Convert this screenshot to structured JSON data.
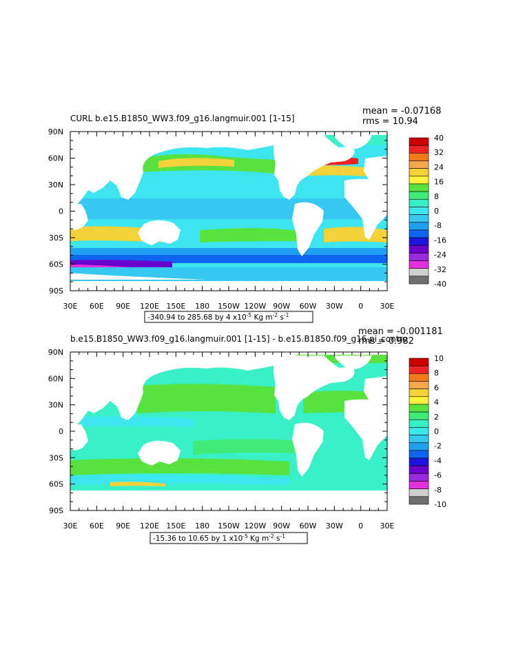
{
  "chart_data": [
    {
      "type": "heatmap",
      "title": "CURL b.e15.B1850_WW3.f09_g16.langmuir.001 [1-15]",
      "mean_label": "mean = -0.07168",
      "rms_label": "rms = 10.94",
      "range_label": "-340.94 to 285.68 by 4 x10",
      "range_exp": "-5",
      "range_units": " Kg m",
      "range_units_exp": "-2",
      "range_units2": " s",
      "range_units2_exp": "-1",
      "x_ticks": [
        "30E",
        "60E",
        "90E",
        "120E",
        "150E",
        "180",
        "150W",
        "120W",
        "90W",
        "60W",
        "30W",
        "0",
        "30E"
      ],
      "y_ticks": [
        "90N",
        "60N",
        "30N",
        "0",
        "30S",
        "60S",
        "90S"
      ],
      "colorbar_levels": [
        "40",
        "32",
        "24",
        "16",
        "8",
        "0",
        "-8",
        "-16",
        "-24",
        "-32",
        "-40"
      ],
      "colors": [
        "#cc0000",
        "#ee2222",
        "#f47a1a",
        "#f5a84a",
        "#f5d23a",
        "#fff23a",
        "#57e23d",
        "#40eb7a",
        "#3af0c6",
        "#3de6ee",
        "#37c8f2",
        "#20a0f0",
        "#1065ee",
        "#1d16e0",
        "#6a00cc",
        "#9a2ae0",
        "#e630e0",
        "#d0d0d0",
        "#707070"
      ],
      "mean": -0.07168,
      "rms": 10.94
    },
    {
      "type": "heatmap",
      "title": "b.e15.B1850_WW3.f09_g16.langmuir.001 [1-15] - b.e15.B1850.f09_g16.pi_contro",
      "mean_label": "mean = -0.001181",
      "rms_label": "rms = 0.982",
      "range_label": "-15.36 to 10.65 by 1 x10",
      "range_exp": "-5",
      "range_units": " Kg m",
      "range_units_exp": "-2",
      "range_units2": " s",
      "range_units2_exp": "-1",
      "x_ticks": [
        "30E",
        "60E",
        "90E",
        "120E",
        "150E",
        "180",
        "150W",
        "120W",
        "90W",
        "60W",
        "30W",
        "0",
        "30E"
      ],
      "y_ticks": [
        "90N",
        "60N",
        "30N",
        "0",
        "30S",
        "60S",
        "90S"
      ],
      "colorbar_levels": [
        "10",
        "8",
        "6",
        "4",
        "2",
        "0",
        "-2",
        "-4",
        "-6",
        "-8",
        "-10"
      ],
      "colors": [
        "#cc0000",
        "#ee2222",
        "#f47a1a",
        "#f5a84a",
        "#f5d23a",
        "#fff23a",
        "#57e23d",
        "#40eb7a",
        "#3af0c6",
        "#3de6ee",
        "#37c8f2",
        "#20a0f0",
        "#1065ee",
        "#1d16e0",
        "#6a00cc",
        "#9a2ae0",
        "#e630e0",
        "#d0d0d0",
        "#707070"
      ],
      "mean": -0.001181,
      "rms": 0.982
    }
  ]
}
